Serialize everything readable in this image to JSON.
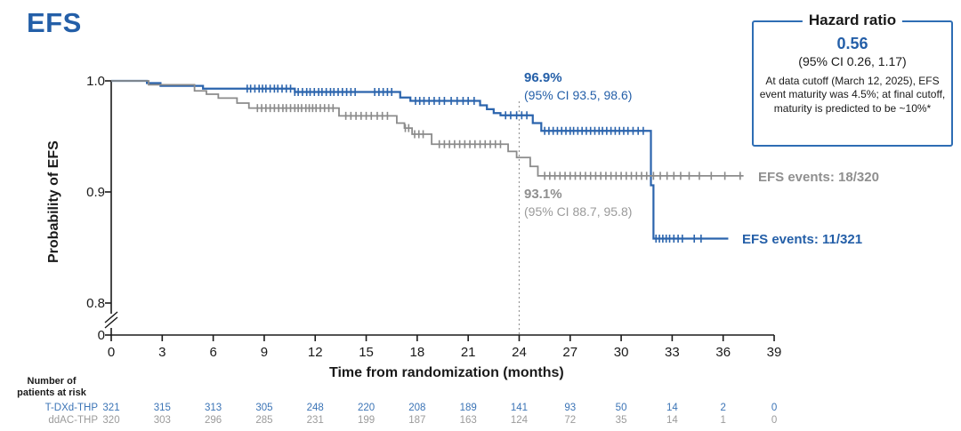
{
  "title": "EFS",
  "colors": {
    "blue": "#245fa8",
    "blue_curve": "#2b64ad",
    "gray_curve": "#8b8b8b",
    "gray_text": "#8f8f8f",
    "risk_blue": "#3b74b6",
    "risk_gray": "#9b9b9b",
    "axis": "#1a1a1a",
    "ref_line": "#999999",
    "box_border": "#2e6db4"
  },
  "hazard_box": {
    "title": "Hazard ratio",
    "value": "0.56",
    "ci": "(95% CI 0.26, 1.17)",
    "note": "At data cutoff (March 12, 2025), EFS event maturity was 4.5%; at final cutoff, maturity is predicted to be ~10%*"
  },
  "annotations": {
    "blue_pct": "96.9%",
    "blue_ci": "(95% CI 93.5, 98.6)",
    "gray_pct": "93.1%",
    "gray_ci": "(95% CI 88.7, 95.8)",
    "gray_events": "EFS events: 18/320",
    "blue_events": "EFS events: 11/321"
  },
  "risk_table": {
    "header_line1": "Number of",
    "header_line2": "patients at risk",
    "rows": [
      {
        "label": "T-DXd-THP",
        "color_key": "risk_blue",
        "values": [
          321,
          315,
          313,
          305,
          248,
          220,
          208,
          189,
          141,
          93,
          50,
          14,
          2,
          0
        ]
      },
      {
        "label": "ddAC-THP",
        "color_key": "risk_gray",
        "values": [
          320,
          303,
          296,
          285,
          231,
          199,
          187,
          163,
          124,
          72,
          35,
          14,
          1,
          0
        ]
      }
    ]
  },
  "chart_data": {
    "type": "line",
    "subtype": "kaplan-meier-step",
    "title": "EFS",
    "xlabel": "Time from randomization (months)",
    "ylabel": "Probability of EFS",
    "xlim": [
      0,
      39
    ],
    "xticks": [
      0,
      3,
      6,
      9,
      12,
      15,
      18,
      21,
      24,
      27,
      30,
      33,
      36,
      39
    ],
    "yticks": [
      1.0,
      0.9,
      0.8
    ],
    "y_zero_tick": "0",
    "y_axis_break": true,
    "grid": false,
    "ref_line_x": 24,
    "legend_position": "curve-end-labels",
    "series": [
      {
        "name": "T-DXd-THP",
        "color_key": "blue_curve",
        "events": "11/321",
        "landmark": {
          "x": 24,
          "value_pct": 96.9,
          "ci_low": 93.5,
          "ci_high": 98.6
        },
        "steps": [
          [
            0,
            1.0
          ],
          [
            2.1,
            0.998
          ],
          [
            2.9,
            0.9955
          ],
          [
            5.4,
            0.993
          ],
          [
            10.8,
            0.99
          ],
          [
            17.0,
            0.985
          ],
          [
            17.6,
            0.982
          ],
          [
            21.7,
            0.978
          ],
          [
            22.1,
            0.9745
          ],
          [
            22.5,
            0.971
          ],
          [
            22.9,
            0.969
          ],
          [
            24.8,
            0.962
          ],
          [
            25.3,
            0.955
          ],
          [
            31.75,
            0.906
          ],
          [
            31.9,
            0.858
          ]
        ],
        "end_month": 36.3,
        "censor_months": [
          8.0,
          8.2,
          8.45,
          8.7,
          8.9,
          9.1,
          9.35,
          9.6,
          9.8,
          10.05,
          10.3,
          10.55,
          10.8,
          11.0,
          11.25,
          11.5,
          11.7,
          11.95,
          12.2,
          12.4,
          12.65,
          12.9,
          13.1,
          13.35,
          13.6,
          13.85,
          14.1,
          14.35,
          15.5,
          15.75,
          16.0,
          16.25,
          16.5,
          17.9,
          18.15,
          18.4,
          18.7,
          19.0,
          19.3,
          19.6,
          20.0,
          20.35,
          20.7,
          21.0,
          21.35,
          23.2,
          23.5,
          23.85,
          24.15,
          24.45,
          25.5,
          25.75,
          26.0,
          26.25,
          26.5,
          26.75,
          27.0,
          27.2,
          27.45,
          27.7,
          27.95,
          28.2,
          28.45,
          28.7,
          28.9,
          29.15,
          29.4,
          29.65,
          29.9,
          30.15,
          30.4,
          30.7,
          31.0,
          31.3,
          32.05,
          32.25,
          32.45,
          32.65,
          32.85,
          33.1,
          33.35,
          33.6,
          34.3,
          34.7
        ]
      },
      {
        "name": "ddAC-THP",
        "color_key": "gray_curve",
        "events": "18/320",
        "landmark": {
          "x": 24,
          "value_pct": 93.1,
          "ci_low": 88.7,
          "ci_high": 95.8
        },
        "steps": [
          [
            0,
            1.0
          ],
          [
            2.2,
            0.9965
          ],
          [
            4.9,
            0.991
          ],
          [
            5.6,
            0.988
          ],
          [
            6.3,
            0.9845
          ],
          [
            7.4,
            0.98
          ],
          [
            8.1,
            0.9755
          ],
          [
            13.4,
            0.9685
          ],
          [
            16.8,
            0.962
          ],
          [
            17.25,
            0.9575
          ],
          [
            17.7,
            0.952
          ],
          [
            18.85,
            0.943
          ],
          [
            23.35,
            0.9365
          ],
          [
            23.85,
            0.931
          ],
          [
            24.65,
            0.923
          ],
          [
            25.1,
            0.9145
          ]
        ],
        "end_month": 37.2,
        "censor_months": [
          8.6,
          8.85,
          9.1,
          9.35,
          9.6,
          9.85,
          10.1,
          10.3,
          10.55,
          10.8,
          11.0,
          11.2,
          11.45,
          11.65,
          11.85,
          12.05,
          12.3,
          12.55,
          12.8,
          13.05,
          13.8,
          14.1,
          14.4,
          14.7,
          15.0,
          15.3,
          15.65,
          15.95,
          16.25,
          17.3,
          17.5,
          17.85,
          18.1,
          18.35,
          19.3,
          19.6,
          19.9,
          20.2,
          20.5,
          20.8,
          21.1,
          21.4,
          21.7,
          22.0,
          22.3,
          22.6,
          22.9,
          25.5,
          25.8,
          26.1,
          26.4,
          26.7,
          27.0,
          27.3,
          27.6,
          27.9,
          28.2,
          28.5,
          28.8,
          29.1,
          29.4,
          29.7,
          30.0,
          30.3,
          30.6,
          30.9,
          31.2,
          31.5,
          31.9,
          32.3,
          32.7,
          33.1,
          33.5,
          34.0,
          34.6,
          35.3,
          36.1,
          37.0
        ]
      }
    ]
  }
}
